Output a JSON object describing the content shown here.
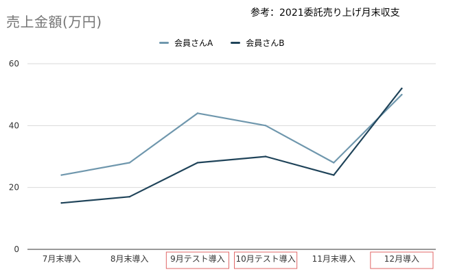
{
  "chart_title": "売上金額(万円)",
  "note": "参考：2021委託売り上げ月末収支",
  "colors": {
    "series_a": "#6f97ad",
    "series_b": "#1f4359",
    "grid": "#d9d9d9",
    "highlight_box": "#e06666"
  },
  "chart_data": {
    "type": "line",
    "title": "売上金額(万円)",
    "categories": [
      "7月末導入",
      "8月末導入",
      "9月テスト導入",
      "10月テスト導入",
      "11月末導入",
      "12月導入"
    ],
    "highlighted_categories": [
      "9月テスト導入",
      "10月テスト導入",
      "12月導入"
    ],
    "series": [
      {
        "name": "会員さんA",
        "values": [
          24,
          28,
          44,
          40,
          28,
          50
        ]
      },
      {
        "name": "会員さんB",
        "values": [
          15,
          17,
          28,
          30,
          24,
          52
        ]
      }
    ],
    "yticks": [
      0,
      20,
      40,
      60
    ],
    "ylim": [
      0,
      60
    ],
    "grid": true,
    "legend_position": "top-center"
  }
}
